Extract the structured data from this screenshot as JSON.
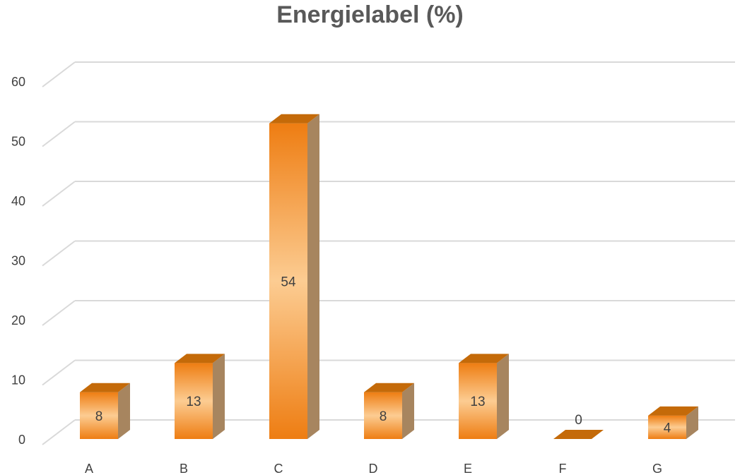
{
  "chart_data": {
    "type": "bar",
    "title": "Energielabel (%)",
    "categories": [
      "A",
      "B",
      "C",
      "D",
      "E",
      "F",
      "G"
    ],
    "values": [
      8,
      13,
      54,
      8,
      13,
      0,
      4
    ],
    "data_labels": [
      "8",
      "13",
      "54",
      "8",
      "13",
      "0",
      "4"
    ],
    "ylim": [
      0,
      60
    ],
    "yticks": [
      0,
      10,
      20,
      30,
      40,
      50,
      60
    ],
    "xlabel": "",
    "ylabel": "",
    "grid": true,
    "three_d": true,
    "legend": "none",
    "colors": {
      "bar_dark": "#EE7D12",
      "bar_light": "#FCCC92",
      "bar_top": "#C46A09",
      "bar_side": "#A7855F",
      "gridline": "#D9D9D9",
      "tick_text": "#404040",
      "title_text": "#595959"
    }
  }
}
